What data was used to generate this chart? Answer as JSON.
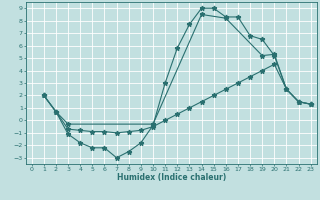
{
  "xlabel": "Humidex (Indice chaleur)",
  "background_color": "#c2e0e0",
  "line_color": "#2a7070",
  "grid_color": "#ffffff",
  "xlim": [
    -0.5,
    23.5
  ],
  "ylim": [
    -3.5,
    9.5
  ],
  "xticks": [
    0,
    1,
    2,
    3,
    4,
    5,
    6,
    7,
    8,
    9,
    10,
    11,
    12,
    13,
    14,
    15,
    16,
    17,
    18,
    19,
    20,
    21,
    22,
    23
  ],
  "yticks": [
    -3,
    -2,
    -1,
    0,
    1,
    2,
    3,
    4,
    5,
    6,
    7,
    8,
    9
  ],
  "line1_x": [
    1,
    2,
    3,
    4,
    5,
    6,
    7,
    8,
    9,
    10,
    11,
    12,
    13,
    14,
    15,
    16,
    17,
    18,
    19,
    20,
    21,
    22,
    23
  ],
  "line1_y": [
    2.0,
    0.7,
    -1.1,
    -1.8,
    -2.2,
    -2.2,
    -3.0,
    -2.5,
    -1.8,
    -0.4,
    3.0,
    5.8,
    7.7,
    9.0,
    9.0,
    8.3,
    8.3,
    6.8,
    6.5,
    5.2,
    2.5,
    1.5,
    1.3
  ],
  "line2_x": [
    1,
    2,
    3,
    4,
    5,
    6,
    7,
    8,
    9,
    10,
    11,
    12,
    13,
    14,
    15,
    16,
    17,
    18,
    19,
    20,
    21,
    22,
    23
  ],
  "line2_y": [
    2.0,
    0.7,
    -0.7,
    -0.8,
    -0.9,
    -0.9,
    -1.0,
    -0.9,
    -0.8,
    -0.5,
    0.0,
    0.5,
    1.0,
    1.5,
    2.0,
    2.5,
    3.0,
    3.5,
    4.0,
    4.5,
    2.5,
    1.5,
    1.3
  ],
  "line3_x": [
    1,
    2,
    3,
    10,
    14,
    16,
    19,
    20,
    21,
    22,
    23
  ],
  "line3_y": [
    2.0,
    0.7,
    -0.3,
    -0.3,
    8.5,
    8.2,
    5.2,
    5.3,
    2.5,
    1.5,
    1.3
  ]
}
